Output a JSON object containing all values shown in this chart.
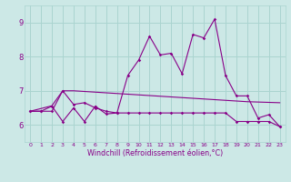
{
  "xlabel": "Windchill (Refroidissement éolien,°C)",
  "background_color": "#cce8e6",
  "grid_color": "#aad4d0",
  "line_color": "#880088",
  "xlim_min": -0.5,
  "xlim_max": 23.5,
  "ylim_min": 5.5,
  "ylim_max": 9.5,
  "yticks": [
    6,
    7,
    8,
    9
  ],
  "xticks": [
    0,
    1,
    2,
    3,
    4,
    5,
    6,
    7,
    8,
    9,
    10,
    11,
    12,
    13,
    14,
    15,
    16,
    17,
    18,
    19,
    20,
    21,
    22,
    23
  ],
  "series1_y": [
    6.4,
    6.4,
    6.4,
    7.0,
    6.6,
    6.65,
    6.5,
    6.4,
    6.35,
    7.45,
    7.9,
    8.6,
    8.05,
    8.1,
    7.5,
    8.65,
    8.55,
    9.1,
    7.45,
    6.85,
    6.85,
    6.2,
    6.3,
    5.95
  ],
  "series2_y": [
    6.4,
    6.4,
    6.55,
    6.1,
    6.5,
    6.1,
    6.55,
    6.32,
    6.35,
    6.35,
    6.35,
    6.35,
    6.35,
    6.35,
    6.35,
    6.35,
    6.35,
    6.35,
    6.35,
    6.1,
    6.1,
    6.1,
    6.1,
    5.95
  ],
  "series3_y": [
    6.4,
    6.48,
    6.56,
    7.0,
    7.0,
    6.98,
    6.96,
    6.94,
    6.92,
    6.9,
    6.88,
    6.86,
    6.84,
    6.82,
    6.8,
    6.78,
    6.76,
    6.74,
    6.72,
    6.7,
    6.68,
    6.67,
    6.66,
    6.65
  ]
}
